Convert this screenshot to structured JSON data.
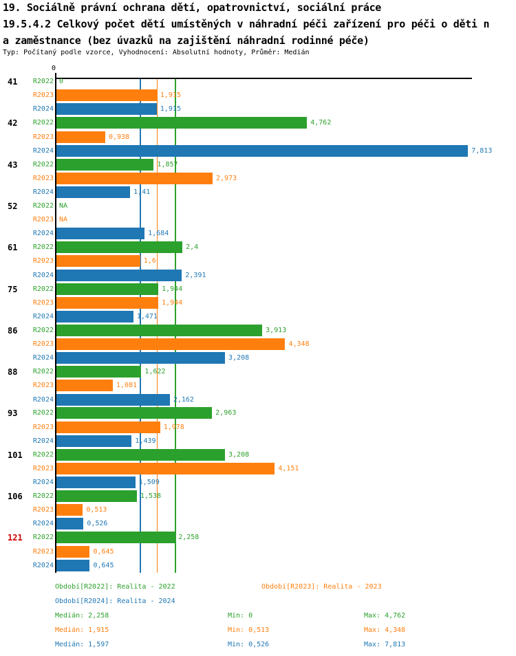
{
  "header": {
    "title_line1": "19. Sociálně právní ochrana dětí, opatrovnictví, sociální práce",
    "title_line2": "19.5.4.2 Celkový počet dětí umístěných v náhradní péči zařízení pro péči o děti n",
    "title_line3": "a zaměstnance (bez úvazků na zajištění náhradní rodinné péče)",
    "subtitle": "Typ: Počítaný podle vzorce, Vyhodnocení: Absolutní hodnoty, Průměr: Medián"
  },
  "chart_data": {
    "type": "bar",
    "orientation": "horizontal",
    "grid": false,
    "axis": {
      "min": 0,
      "max": 7.89,
      "tick_label": "0"
    },
    "categories": [
      "41",
      "42",
      "43",
      "52",
      "61",
      "75",
      "86",
      "88",
      "93",
      "101",
      "106",
      "121"
    ],
    "highlight_category": "121",
    "highlight_color": "#CC0000",
    "category_color": "#000000",
    "na_label": "NA",
    "series": [
      {
        "name": "R2022",
        "legend": "Období[R2022]: Realita - 2022",
        "color": "#2CA02C",
        "median": 2.258,
        "min": 0,
        "max": 4.762,
        "values": [
          0,
          4.762,
          1.857,
          null,
          2.4,
          1.944,
          3.913,
          1.622,
          2.963,
          3.208,
          1.538,
          2.258
        ],
        "labels": [
          "0",
          "4,762",
          "1,857",
          "NA",
          "2,4",
          "1,944",
          "3,913",
          "1,622",
          "2,963",
          "3,208",
          "1,538",
          "2,258"
        ]
      },
      {
        "name": "R2023",
        "legend": "Období[R2023]: Realita - 2023",
        "color": "#FF7F0E",
        "median": 1.915,
        "min": 0.513,
        "max": 4.348,
        "values": [
          1.915,
          0.938,
          2.973,
          null,
          1.6,
          1.944,
          4.348,
          1.081,
          1.978,
          4.151,
          0.513,
          0.645
        ],
        "labels": [
          "1,915",
          "0,938",
          "2,973",
          "NA",
          "1,6",
          "1,944",
          "4,348",
          "1,081",
          "1,978",
          "4,151",
          "0,513",
          "0,645"
        ]
      },
      {
        "name": "R2024",
        "legend": "Období[R2024]: Realita - 2024",
        "color": "#1F77B4",
        "median": 1.597,
        "min": 0.526,
        "max": 7.813,
        "values": [
          1.915,
          7.813,
          1.41,
          1.684,
          2.391,
          1.471,
          3.208,
          2.162,
          1.439,
          1.509,
          0.526,
          0.645
        ],
        "labels": [
          "1,915",
          "7,813",
          "1,41",
          "1,684",
          "2,391",
          "1,471",
          "3,208",
          "2,162",
          "1,439",
          "1,509",
          "0,526",
          "0,645"
        ]
      }
    ]
  },
  "legend": {
    "periods": [
      {
        "text": "Období[R2022]: Realita - 2022",
        "color": "#2CA02C"
      },
      {
        "text": "Období[R2023]: Realita - 2023",
        "color": "#FF7F0E"
      },
      {
        "text": "Období[R2024]: Realita - 2024",
        "color": "#1F77B4"
      }
    ],
    "stats": [
      {
        "median": "Medián: 2,258",
        "min": "Min: 0",
        "max": "Max: 4,762",
        "color": "#2CA02C"
      },
      {
        "median": "Medián: 1,915",
        "min": "Min: 0,513",
        "max": "Max: 4,348",
        "color": "#FF7F0E"
      },
      {
        "median": "Medián: 1,597",
        "min": "Min: 0,526",
        "max": "Max: 7,813",
        "color": "#1F77B4"
      }
    ]
  }
}
